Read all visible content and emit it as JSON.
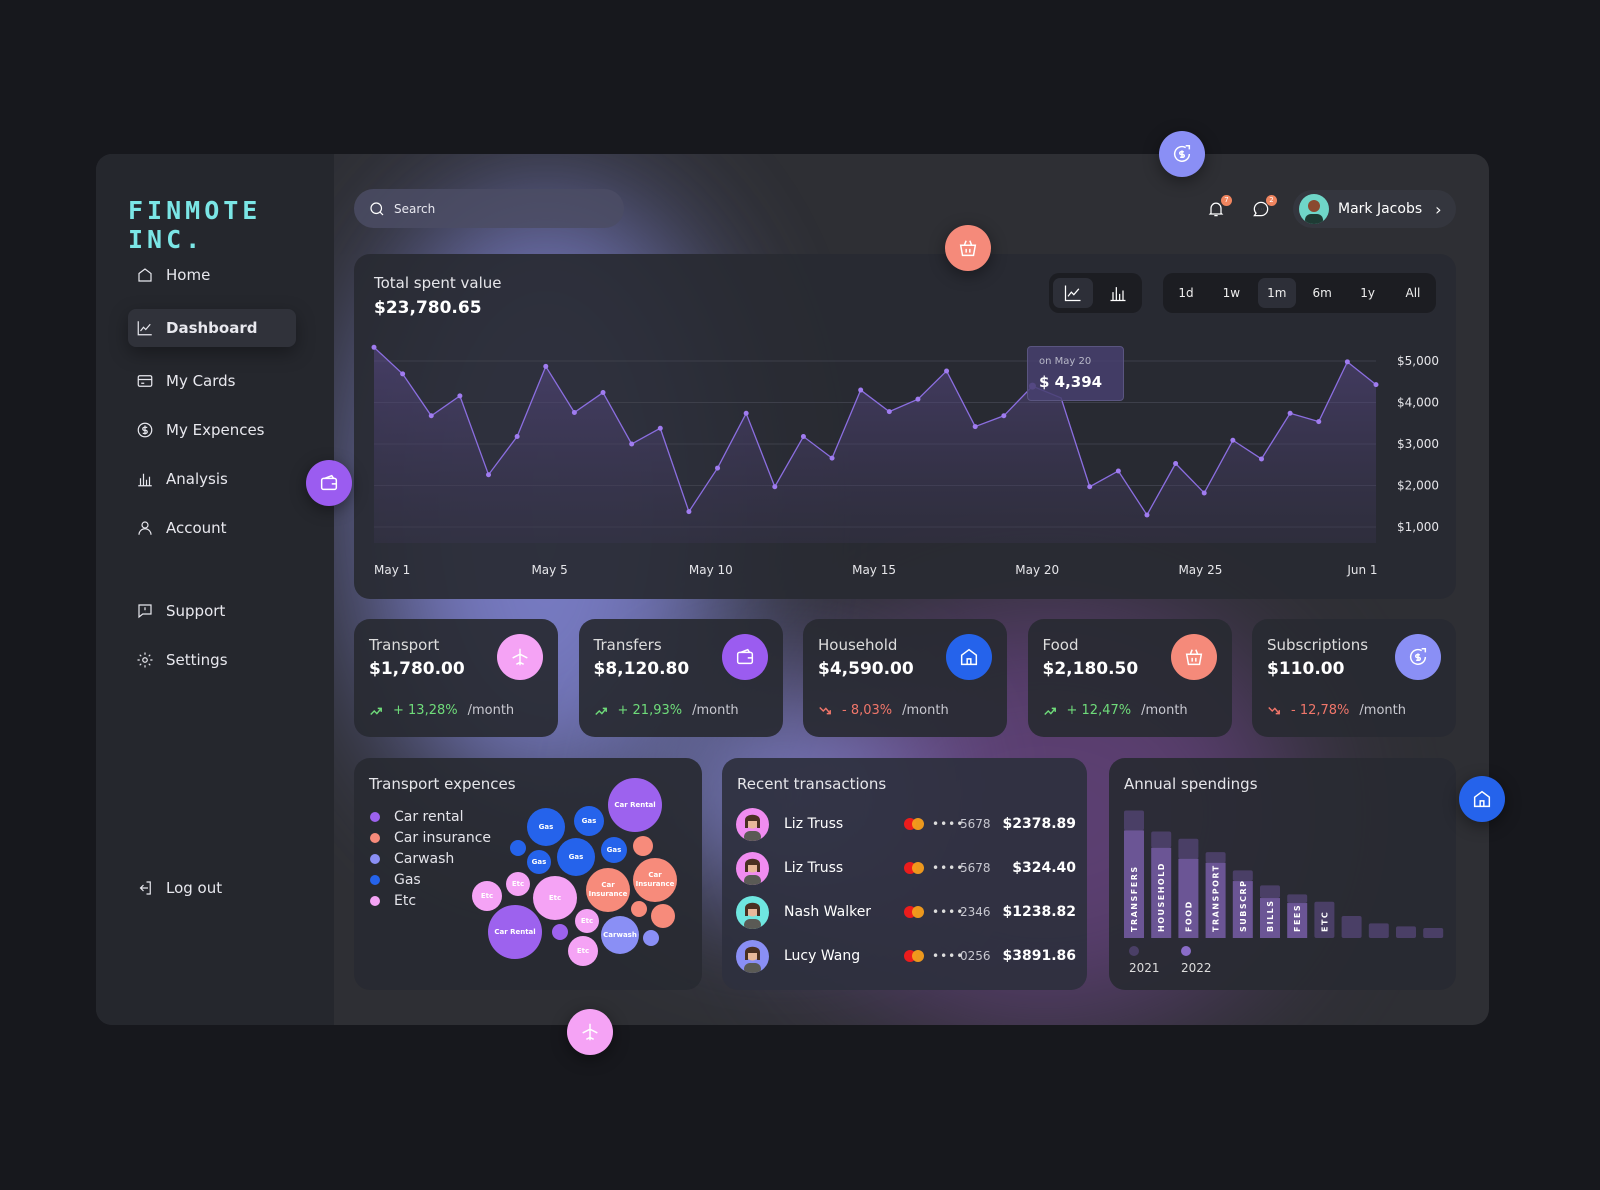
{
  "sidebar": {
    "logo": "FINMOTE INC.",
    "items": [
      {
        "label": "Home",
        "icon": "home-icon"
      },
      {
        "label": "Dashboard",
        "icon": "chart-line-icon",
        "active": true
      },
      {
        "label": "My Cards",
        "icon": "card-icon"
      },
      {
        "label": "My Expences",
        "icon": "dollar-icon"
      },
      {
        "label": "Analysis",
        "icon": "bar-chart-icon"
      },
      {
        "label": "Account",
        "icon": "user-icon"
      }
    ],
    "secondary": [
      {
        "label": "Support",
        "icon": "support-icon"
      },
      {
        "label": "Settings",
        "icon": "gear-icon"
      }
    ],
    "logout": "Log out"
  },
  "header": {
    "search_placeholder": "Search",
    "notifications": "7",
    "messages": "2",
    "user": "Mark Jacobs"
  },
  "total": {
    "title": "Total spent value",
    "value": "$23,780.65",
    "tooltip_date": "on May 20",
    "tooltip_value": "$ 4,394",
    "ranges": [
      "1d",
      "1w",
      "1m",
      "6m",
      "1y",
      "All"
    ],
    "active_range": "1m",
    "view": "line"
  },
  "categories": [
    {
      "title": "Transport",
      "value": "$1,780.00",
      "change": "+ 13,28%",
      "trend": "up",
      "period": "/month",
      "color": "#f5a3f5",
      "icon": "plane-icon"
    },
    {
      "title": "Transfers",
      "value": "$8,120.80",
      "change": "+ 21,93%",
      "trend": "up",
      "period": "/month",
      "color": "#9b5cf0",
      "icon": "wallet-icon"
    },
    {
      "title": "Household",
      "value": "$4,590.00",
      "change": "- 8,03%",
      "trend": "down",
      "period": "/month",
      "color": "#2563eb",
      "icon": "house-icon"
    },
    {
      "title": "Food",
      "value": "$2,180.50",
      "change": "+ 12,47%",
      "trend": "up",
      "period": "/month",
      "color": "#f58a7a",
      "icon": "basket-icon"
    },
    {
      "title": "Subscriptions",
      "value": "$110.00",
      "change": "- 12,78%",
      "trend": "down",
      "period": "/month",
      "color": "#8a8ff5",
      "icon": "dollar-refresh-icon"
    }
  ],
  "colors": {
    "up": "#6fdc7a",
    "down": "#f0766a",
    "line": "#8b6ee0"
  },
  "transport": {
    "title": "Transport expences",
    "legend": [
      {
        "label": "Car rental",
        "color": "#9d62ee"
      },
      {
        "label": "Car insurance",
        "color": "#f78b7b"
      },
      {
        "label": "Carwash",
        "color": "#8a8ff5"
      },
      {
        "label": "Gas",
        "color": "#2563eb"
      },
      {
        "label": "Etc",
        "color": "#f5a3f5"
      }
    ],
    "bubbles": [
      {
        "cat": 4,
        "label": ""
      },
      {
        "cat": 0,
        "label": "Car Rental"
      },
      {
        "cat": 3,
        "label": "Gas"
      },
      {
        "cat": 3,
        "label": "Gas"
      },
      {
        "cat": 3,
        "label": ""
      },
      {
        "cat": 3,
        "label": "Gas"
      },
      {
        "cat": 3,
        "label": "Gas"
      },
      {
        "cat": 3,
        "label": "Gas"
      },
      {
        "cat": 1,
        "label": ""
      },
      {
        "cat": 1,
        "label": "Car Insurance"
      },
      {
        "cat": 1,
        "label": "Car Insurance"
      },
      {
        "cat": 4,
        "label": "Etc"
      },
      {
        "cat": 4,
        "label": "Etc"
      },
      {
        "cat": 4,
        "label": "Etc"
      },
      {
        "cat": 1,
        "label": ""
      },
      {
        "cat": 1,
        "label": ""
      },
      {
        "cat": 4,
        "label": "Etc"
      },
      {
        "cat": 0,
        "label": "Car Rental"
      },
      {
        "cat": 0,
        "label": ""
      },
      {
        "cat": 2,
        "label": "Carwash"
      },
      {
        "cat": 2,
        "label": ""
      },
      {
        "cat": 4,
        "label": "Etc"
      }
    ]
  },
  "transactions": {
    "title": "Recent transactions",
    "rows": [
      {
        "name": "Liz Truss",
        "card": "5678",
        "amount": "$2378.89",
        "avatar_bg": "#f08cf0"
      },
      {
        "name": "Liz Truss",
        "card": "5678",
        "amount": "$324.40",
        "avatar_bg": "#f08cf0"
      },
      {
        "name": "Nash Walker",
        "card": "2346",
        "amount": "$1238.82",
        "avatar_bg": "#6fe6e0"
      },
      {
        "name": "Lucy Wang",
        "card": "0256",
        "amount": "$3891.86",
        "avatar_bg": "#8a8ff5"
      }
    ],
    "mask": "••••"
  },
  "chart_data": [
    {
      "type": "area",
      "title": "Total spent value",
      "ylim": [
        1000,
        5000
      ],
      "y_ticks": [
        "$5,000",
        "$4,000",
        "$3,000",
        "$2,000",
        "$1,000"
      ],
      "y_tick_values": [
        5000,
        4000,
        3000,
        2000,
        1000
      ],
      "grid": true,
      "x_ticks": [
        {
          "label": "May 1",
          "at": 0
        },
        {
          "label": "May 5",
          "at": 5.5
        },
        {
          "label": "May 10",
          "at": 11
        },
        {
          "label": "May 15",
          "at": 16.7
        },
        {
          "label": "May 20",
          "at": 22.4
        },
        {
          "label": "May 25",
          "at": 28.1
        },
        {
          "label": "Jun 1",
          "at": 34
        }
      ],
      "values": [
        5330,
        4690,
        3680,
        4160,
        2260,
        3180,
        4870,
        3760,
        4240,
        3000,
        3380,
        1370,
        2420,
        3740,
        1970,
        3180,
        2660,
        4300,
        3780,
        4080,
        4760,
        3420,
        3680,
        4394,
        4110,
        1970,
        2350,
        1290,
        2530,
        1820,
        3090,
        2640,
        3740,
        3540,
        4980,
        4430
      ],
      "highlight_index": 23
    },
    {
      "type": "bar",
      "stacked": true,
      "title": "Annual spendings",
      "categories": [
        "TRANSFERS",
        "HOUSEHOLD",
        "FOOD",
        "TRANSPORT",
        "SUBSCRP",
        "BILLS",
        "FEES",
        "ETC",
        "",
        "",
        "",
        ""
      ],
      "series": [
        {
          "name": "2022",
          "color": "#6b5595",
          "values": [
            323,
            271,
            238,
            226,
            171,
            120,
            105,
            0,
            0,
            0,
            0,
            0
          ]
        },
        {
          "name": "2021",
          "color": "#4a3f66",
          "values": [
            60,
            49,
            60,
            32,
            32,
            38,
            26,
            109,
            66,
            44,
            35,
            30
          ]
        }
      ]
    }
  ]
}
